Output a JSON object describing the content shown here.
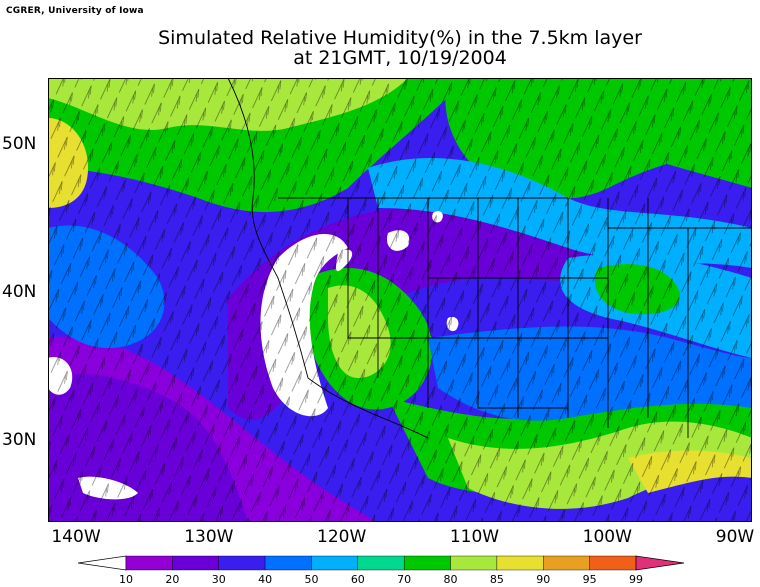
{
  "credit": "CGRER, University of Iowa",
  "title": {
    "line1": "Simulated Relative Humidity(%) in the 7.5km layer",
    "line2": "at 21GMT, 10/19/2004"
  },
  "axes": {
    "lat_labels": [
      {
        "text": "50N",
        "lat": 50
      },
      {
        "text": "40N",
        "lat": 40
      },
      {
        "text": "30N",
        "lat": 30
      }
    ],
    "lon_labels": [
      {
        "text": "140W",
        "lon": -140
      },
      {
        "text": "130W",
        "lon": -130
      },
      {
        "text": "120W",
        "lon": -120
      },
      {
        "text": "110W",
        "lon": -110
      },
      {
        "text": "100W",
        "lon": -100
      },
      {
        "text": "90W",
        "lon": -90
      }
    ]
  },
  "colorbar": {
    "ticks": [
      "10",
      "20",
      "30",
      "40",
      "50",
      "60",
      "70",
      "80",
      "85",
      "90",
      "95",
      "99"
    ],
    "colors": [
      "#9400d3",
      "#6a00d8",
      "#3a1ef0",
      "#0070ff",
      "#00b0ff",
      "#00d890",
      "#00c800",
      "#a8e83c",
      "#e8e030",
      "#e8a020",
      "#f06018",
      "#f00000",
      "#d8008a"
    ],
    "under_color": "#ffffff",
    "over_color": "#e0307a"
  },
  "colors": {
    "purple": "#8a00dc",
    "violet": "#6a00d8",
    "blue": "#3a1ef0",
    "mid_blue": "#0070ff",
    "light_blue": "#00b0ff",
    "cyan": "#00d8d8",
    "green": "#00c800",
    "yellow_green": "#a8e83c",
    "yellow": "#e8e030",
    "white": "#ffffff"
  }
}
